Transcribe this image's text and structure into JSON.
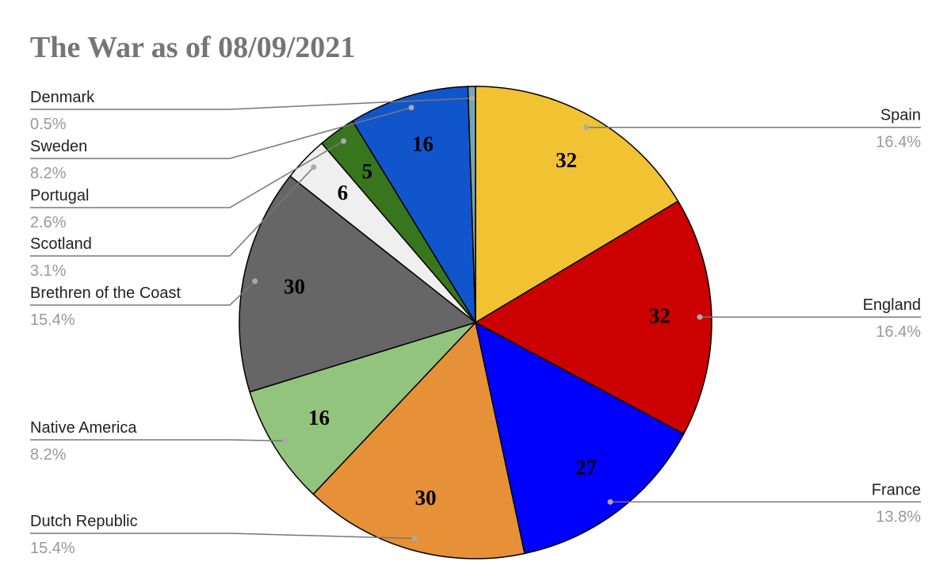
{
  "chart_data": {
    "type": "pie",
    "title": "The War as of 08/09/2021",
    "categories": [
      "Spain",
      "England",
      "France",
      "Dutch Republic",
      "Native America",
      "Brethren of the Coast",
      "Scotland",
      "Portugal",
      "Sweden",
      "Denmark"
    ],
    "values": [
      32,
      32,
      27,
      30,
      16,
      30,
      6,
      5,
      16,
      1
    ],
    "percent_labels": [
      "16.4%",
      "16.4%",
      "13.8%",
      "15.4%",
      "8.2%",
      "15.4%",
      "3.1%",
      "2.6%",
      "8.2%",
      "0.5%"
    ],
    "colors": [
      "#f1c232",
      "#cc0000",
      "#0000ff",
      "#e69138",
      "#93c47d",
      "#666666",
      "#efefef",
      "#38761d",
      "#1155cc",
      "#76a5af"
    ]
  }
}
